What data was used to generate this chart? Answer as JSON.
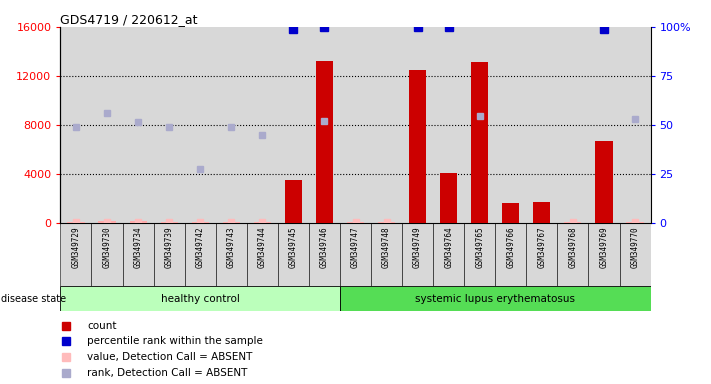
{
  "title": "GDS4719 / 220612_at",
  "samples": [
    "GSM349729",
    "GSM349730",
    "GSM349734",
    "GSM349739",
    "GSM349742",
    "GSM349743",
    "GSM349744",
    "GSM349745",
    "GSM349746",
    "GSM349747",
    "GSM349748",
    "GSM349749",
    "GSM349764",
    "GSM349765",
    "GSM349766",
    "GSM349767",
    "GSM349768",
    "GSM349769",
    "GSM349770"
  ],
  "count_values": [
    50,
    100,
    100,
    50,
    50,
    50,
    50,
    3500,
    13200,
    50,
    50,
    12500,
    4100,
    13100,
    1600,
    1700,
    50,
    6700,
    50
  ],
  "percentile_values": [
    null,
    null,
    null,
    null,
    null,
    null,
    null,
    15800,
    16000,
    null,
    null,
    16000,
    16000,
    null,
    null,
    null,
    null,
    15800,
    null
  ],
  "rank_absent_values": [
    7800,
    9000,
    8200,
    7800,
    4400,
    7800,
    7200,
    null,
    8300,
    null,
    null,
    null,
    null,
    8700,
    null,
    null,
    null,
    null,
    8500
  ],
  "value_absent_values": [
    50,
    100,
    100,
    50,
    50,
    50,
    50,
    null,
    50,
    50,
    50,
    null,
    50,
    null,
    50,
    50,
    50,
    null,
    50
  ],
  "count_absent": [
    true,
    true,
    true,
    true,
    true,
    true,
    true,
    false,
    false,
    true,
    true,
    false,
    false,
    false,
    false,
    false,
    true,
    false,
    true
  ],
  "healthy_count": 9,
  "lupus_count": 10,
  "ylim_left": [
    0,
    16000
  ],
  "left_ticks": [
    0,
    4000,
    8000,
    12000,
    16000
  ],
  "right_ticks": [
    0,
    25,
    50,
    75,
    100
  ],
  "bar_color_present": "#cc0000",
  "bar_color_absent": "#ffaaaa",
  "dot_color_present": "#0000cc",
  "dot_color_absent": "#aaaacc",
  "healthy_label": "healthy control",
  "lupus_label": "systemic lupus erythematosus",
  "disease_state_label": "disease state"
}
